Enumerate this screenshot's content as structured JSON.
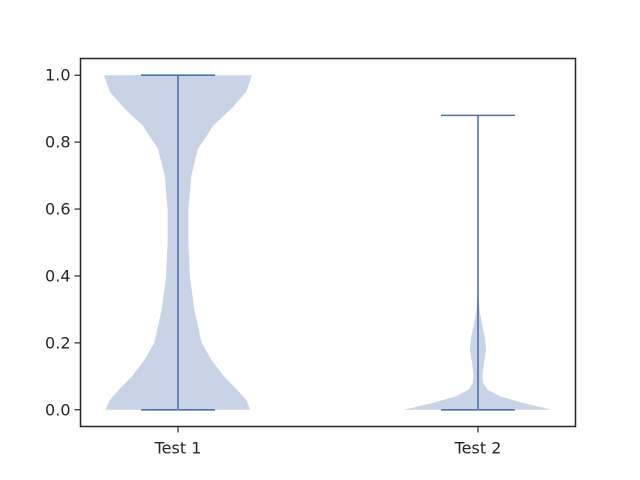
{
  "chart_data": {
    "type": "violin",
    "categories": [
      "Test 1",
      "Test 2"
    ],
    "ylim": [
      -0.05,
      1.05
    ],
    "yticks": [
      "0.0",
      "0.2",
      "0.4",
      "0.6",
      "0.8",
      "1.0"
    ],
    "grid": false,
    "colors": {
      "body": "#c9d3e6",
      "line": "#4c72b0",
      "axis": "#262626"
    },
    "violins": [
      {
        "name": "Test 1",
        "min": 0.0,
        "max": 1.0,
        "density": [
          [
            0.0,
            0.98
          ],
          [
            0.03,
            0.92
          ],
          [
            0.06,
            0.8
          ],
          [
            0.1,
            0.62
          ],
          [
            0.15,
            0.45
          ],
          [
            0.2,
            0.32
          ],
          [
            0.3,
            0.22
          ],
          [
            0.4,
            0.16
          ],
          [
            0.5,
            0.14
          ],
          [
            0.6,
            0.14
          ],
          [
            0.7,
            0.18
          ],
          [
            0.78,
            0.27
          ],
          [
            0.85,
            0.48
          ],
          [
            0.9,
            0.72
          ],
          [
            0.95,
            0.92
          ],
          [
            1.0,
            1.0
          ]
        ]
      },
      {
        "name": "Test 2",
        "min": 0.0,
        "max": 0.88,
        "density": [
          [
            0.0,
            1.0
          ],
          [
            0.02,
            0.62
          ],
          [
            0.04,
            0.3
          ],
          [
            0.06,
            0.13
          ],
          [
            0.08,
            0.07
          ],
          [
            0.1,
            0.06
          ],
          [
            0.14,
            0.08
          ],
          [
            0.18,
            0.11
          ],
          [
            0.22,
            0.09
          ],
          [
            0.26,
            0.05
          ],
          [
            0.3,
            0.02
          ],
          [
            0.35,
            0.005
          ],
          [
            0.4,
            0.0
          ]
        ]
      }
    ]
  }
}
